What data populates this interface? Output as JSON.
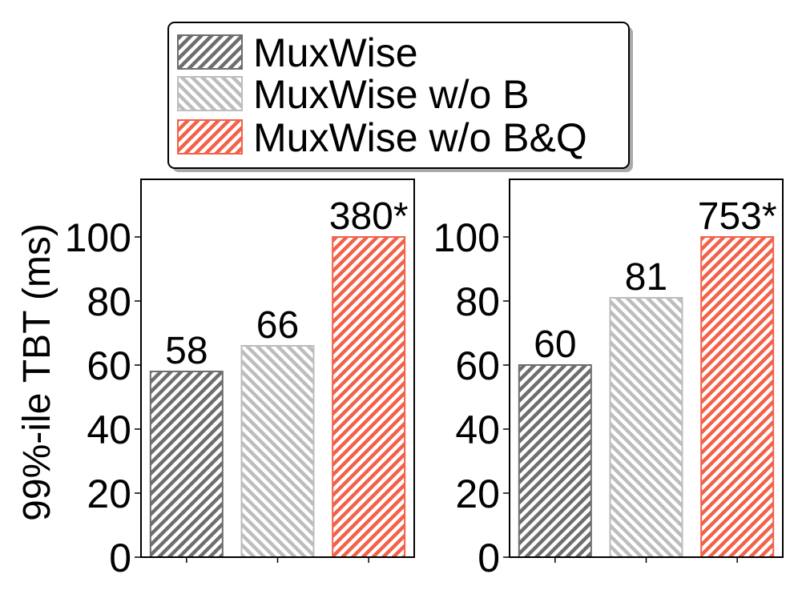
{
  "chart_data": {
    "type": "bar",
    "ylabel": "99%-ile TBT (ms)",
    "ylim": [
      0,
      118
    ],
    "yticks": [
      0,
      20,
      40,
      60,
      80,
      100
    ],
    "grid": false,
    "legend_placement": "top",
    "series": [
      {
        "name": "MuxWise",
        "color": "#6e6e6e",
        "hatch": "dense-diagonal"
      },
      {
        "name": "MuxWise w/o B",
        "color": "#bdbdbd",
        "hatch": "back-diagonal"
      },
      {
        "name": "MuxWise w/o B&Q",
        "color": "#f2624a",
        "hatch": "dense-diagonal"
      }
    ],
    "panels": [
      {
        "values": [
          58,
          66,
          100
        ],
        "labels": [
          "58",
          "66",
          "380*"
        ]
      },
      {
        "values": [
          60,
          81,
          100
        ],
        "labels": [
          "60",
          "81",
          "753*"
        ]
      }
    ]
  }
}
